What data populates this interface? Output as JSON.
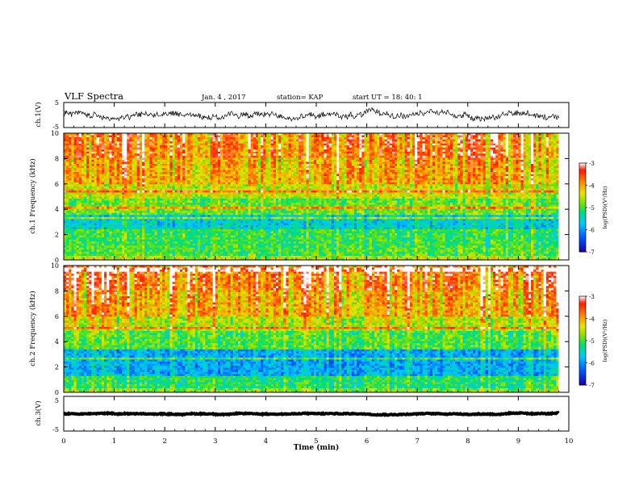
{
  "header": {
    "title": "VLF Spectra",
    "date": "Jan. 4 , 2017",
    "station": "station= KAP",
    "start_ut": "start  UT =   18: 40: 1"
  },
  "chart_data": [
    {
      "type": "line",
      "name": "ch.1 waveform",
      "ylabel": "ch.1(V)",
      "ylim": [
        -5,
        5
      ],
      "yticks": [
        "5",
        "-5"
      ],
      "xlim": [
        0,
        10
      ],
      "x_end": 9.8,
      "approx_level": 0,
      "approx_amplitude": 2.5
    },
    {
      "type": "heatmap",
      "name": "ch.1 spectrogram",
      "ylabel": "ch.1\nFrequency (kHz)",
      "ylim": [
        0,
        10
      ],
      "yticks": [
        "0",
        "2",
        "4",
        "6",
        "8",
        "10"
      ],
      "xlim": [
        0,
        10
      ],
      "x_end": 9.8,
      "frequency_bands_khz": [
        {
          "from": 0,
          "to": 0.4,
          "level": -4.6
        },
        {
          "from": 0.4,
          "to": 1.2,
          "level": -5.0
        },
        {
          "from": 1.2,
          "to": 2.5,
          "level": -5.1
        },
        {
          "from": 2.5,
          "to": 3.6,
          "level": -5.6
        },
        {
          "from": 3.6,
          "to": 4.8,
          "level": -4.9
        },
        {
          "from": 4.8,
          "to": 6.0,
          "level": -4.5
        },
        {
          "from": 6.0,
          "to": 8.0,
          "level": -4.1
        },
        {
          "from": 8.0,
          "to": 10.0,
          "level": -3.8
        }
      ],
      "colorbar": {
        "label": "log(PSD)(V²/Hz)",
        "range": [
          -7,
          -3
        ],
        "ticks": [
          "-3",
          "-4",
          "-5",
          "-6",
          "-7"
        ]
      }
    },
    {
      "type": "heatmap",
      "name": "ch.2 spectrogram",
      "ylabel": "ch.2\nFrequency (kHz)",
      "ylim": [
        0,
        10
      ],
      "yticks": [
        "0",
        "2",
        "4",
        "6",
        "8",
        "10"
      ],
      "xlim": [
        0,
        10
      ],
      "x_end": 9.8,
      "frequency_bands_khz": [
        {
          "from": 0,
          "to": 0.4,
          "level": -4.8
        },
        {
          "from": 0.4,
          "to": 1.3,
          "level": -5.2
        },
        {
          "from": 1.3,
          "to": 3.4,
          "level": -5.9
        },
        {
          "from": 3.4,
          "to": 4.8,
          "level": -5.0
        },
        {
          "from": 4.8,
          "to": 6.0,
          "level": -4.6
        },
        {
          "from": 6.0,
          "to": 8.0,
          "level": -4.1
        },
        {
          "from": 8.0,
          "to": 10.0,
          "level": -3.8
        }
      ],
      "colorbar": {
        "label": "log(PSD)(V²/Hz)",
        "range": [
          -7,
          -3
        ],
        "ticks": [
          "-3",
          "-4",
          "-5",
          "-6",
          "-7"
        ]
      }
    },
    {
      "type": "line",
      "name": "ch.3 waveform",
      "ylabel": "ch.3(V)",
      "ylim": [
        -5,
        5
      ],
      "yticks": [
        "5",
        "-5"
      ],
      "xlim": [
        0,
        10
      ],
      "x_end": 9.8,
      "approx_level": 0,
      "approx_amplitude": 0.3
    }
  ],
  "x_axis": {
    "label": "Time (min)",
    "ticks": [
      "0",
      "1",
      "2",
      "3",
      "4",
      "5",
      "6",
      "7",
      "8",
      "9",
      "10"
    ]
  },
  "colors": {
    "waveform": "#000000",
    "colormap": [
      "#1a00a8",
      "#0050ff",
      "#00c8ff",
      "#00e070",
      "#7ee000",
      "#e6e600",
      "#ff8c00",
      "#ff1a00",
      "#ffffff"
    ]
  }
}
